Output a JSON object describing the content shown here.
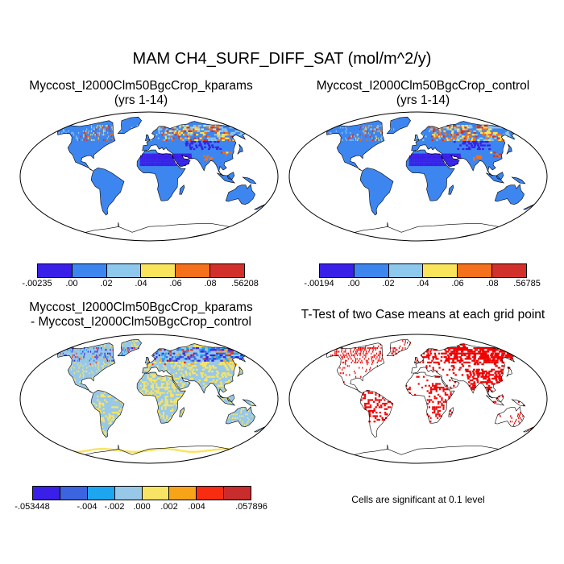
{
  "title": "MAM CH4_SURF_DIFF_SAT (mol/m^2/y)",
  "panels": [
    {
      "id": "kparams",
      "title_line1": "Myccost_I2000Clm50BgcCrop_kparams",
      "title_line2": "(yrs 1-14)",
      "colorbar": {
        "colors": [
          "#3a1fe8",
          "#3d86f0",
          "#8ec8ec",
          "#f9e45c",
          "#f5701c",
          "#d2302a"
        ],
        "labels": [
          "-.00235",
          ".00",
          ".02",
          ".04",
          ".06",
          ".08",
          ".56208"
        ]
      }
    },
    {
      "id": "control",
      "title_line1": "Myccost_I2000Clm50BgcCrop_control",
      "title_line2": "(yrs 1-14)",
      "colorbar": {
        "colors": [
          "#3a1fe8",
          "#3d86f0",
          "#8ec8ec",
          "#f9e45c",
          "#f5701c",
          "#d2302a"
        ],
        "labels": [
          "-.00194",
          ".00",
          ".02",
          ".04",
          ".06",
          ".08",
          ".56785"
        ]
      }
    },
    {
      "id": "difference",
      "title_line1": "Myccost_I2000Clm50BgcCrop_kparams",
      "title_line2": "- Myccost_I2000Clm50BgcCrop_control",
      "colorbar": {
        "colors": [
          "#3a1fe8",
          "#3c63e0",
          "#1ca6f0",
          "#98c8e8",
          "#f8e464",
          "#f8a418",
          "#f82c10",
          "#c82c2c"
        ],
        "labels": [
          "-.053448",
          "",
          "-.004",
          "-.002",
          ".000",
          ".002",
          ".004",
          "",
          ".057896"
        ]
      }
    },
    {
      "id": "ttest",
      "title_line1": "T-Test of two Case means at each grid point",
      "title_line2": "",
      "note": "Cells are significant at 0.1 level"
    }
  ],
  "map_colors": {
    "land": "#3d86f0",
    "ocean": "#ffffff",
    "significant": "#f00000",
    "desert_low": "#3a1fe8",
    "diff_land": "#98c8e8",
    "diff_positive": "#f8e464"
  }
}
